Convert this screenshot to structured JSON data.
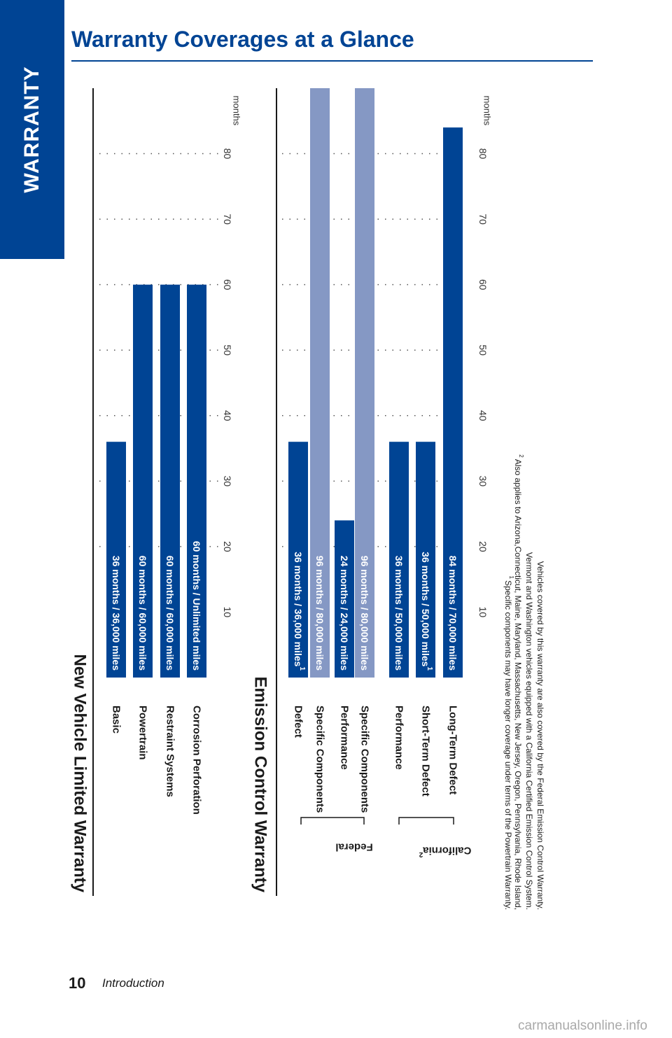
{
  "sidebar": {
    "label": "WARRANTY"
  },
  "header": {
    "title": "Warranty Coverages at a Glance"
  },
  "footer": {
    "page_number": "10",
    "section": "Introduction",
    "watermark": "carmanualsonline.info"
  },
  "colors": {
    "primary": "#004494",
    "secondary": "#8598c4"
  },
  "chart_data": [
    {
      "type": "bar",
      "title": "New Vehicle Limited Warranty",
      "unit_label": "months",
      "ylim": [
        0,
        90
      ],
      "ticks": [
        10,
        20,
        30,
        40,
        50,
        60,
        70,
        80
      ],
      "grid": true,
      "orientation": "horizontal",
      "categories": [
        "Basic",
        "Powertrain",
        "Restraint Systems",
        "Corrosion Perforation"
      ],
      "values": [
        36,
        60,
        60,
        60
      ],
      "labels": [
        "36 months  /  36,000 miles",
        "60 months  /  60,000 miles",
        "60 months  /  60,000 miles",
        "60 months  /  Unlimited miles"
      ],
      "shades": [
        "primary",
        "primary",
        "primary",
        "primary"
      ]
    },
    {
      "type": "bar",
      "title": "Emission Control Warranty",
      "unit_label": "months",
      "ylim": [
        0,
        90
      ],
      "ticks": [
        10,
        20,
        30,
        40,
        50,
        60,
        70,
        80
      ],
      "grid": true,
      "orientation": "horizontal",
      "groups": [
        {
          "name": "Federal",
          "members": [
            0,
            1,
            2,
            3
          ]
        },
        {
          "name": "California",
          "superscript": "2",
          "members": [
            4,
            5,
            6
          ]
        }
      ],
      "categories": [
        "Defect",
        "Specific Components",
        "Performance",
        "Specific Components",
        "Performance",
        "Short-Term Defect",
        "Long-Term Defect"
      ],
      "values": [
        36,
        96,
        24,
        96,
        36,
        36,
        84
      ],
      "labels": [
        "36 months  /  36,000 miles",
        "96 months  /  80,000 miles",
        "24 months  /  24,000 miles",
        "96 months  /  80,000 miles",
        "36 months  /  50,000 miles",
        "36 months  /  50,000 miles",
        "84 months  /  70,000 miles"
      ],
      "label_superscripts": [
        "1",
        "",
        "",
        "",
        "",
        "1",
        ""
      ],
      "shades": [
        "primary",
        "secondary",
        "primary",
        "secondary",
        "primary",
        "primary",
        "primary"
      ]
    }
  ],
  "footnotes": [
    {
      "mark": "1",
      "text": "Specific components may have longer coverage under terms of the Powertrain Warranty."
    },
    {
      "mark": "2",
      "text": "Also applies to Arizona,Connecticut, Maine, Maryland, Massachusetts, New Jersey, Oregon, Pennsylvania, Rhode Island,"
    },
    {
      "mark": "",
      "text": "Vermont and Washington vehicles equipped with a California Certified Emission Control System."
    },
    {
      "mark": "",
      "text": "Vehicles covered by this warranty are also covered by the Federal Emission Control Warranty."
    }
  ]
}
